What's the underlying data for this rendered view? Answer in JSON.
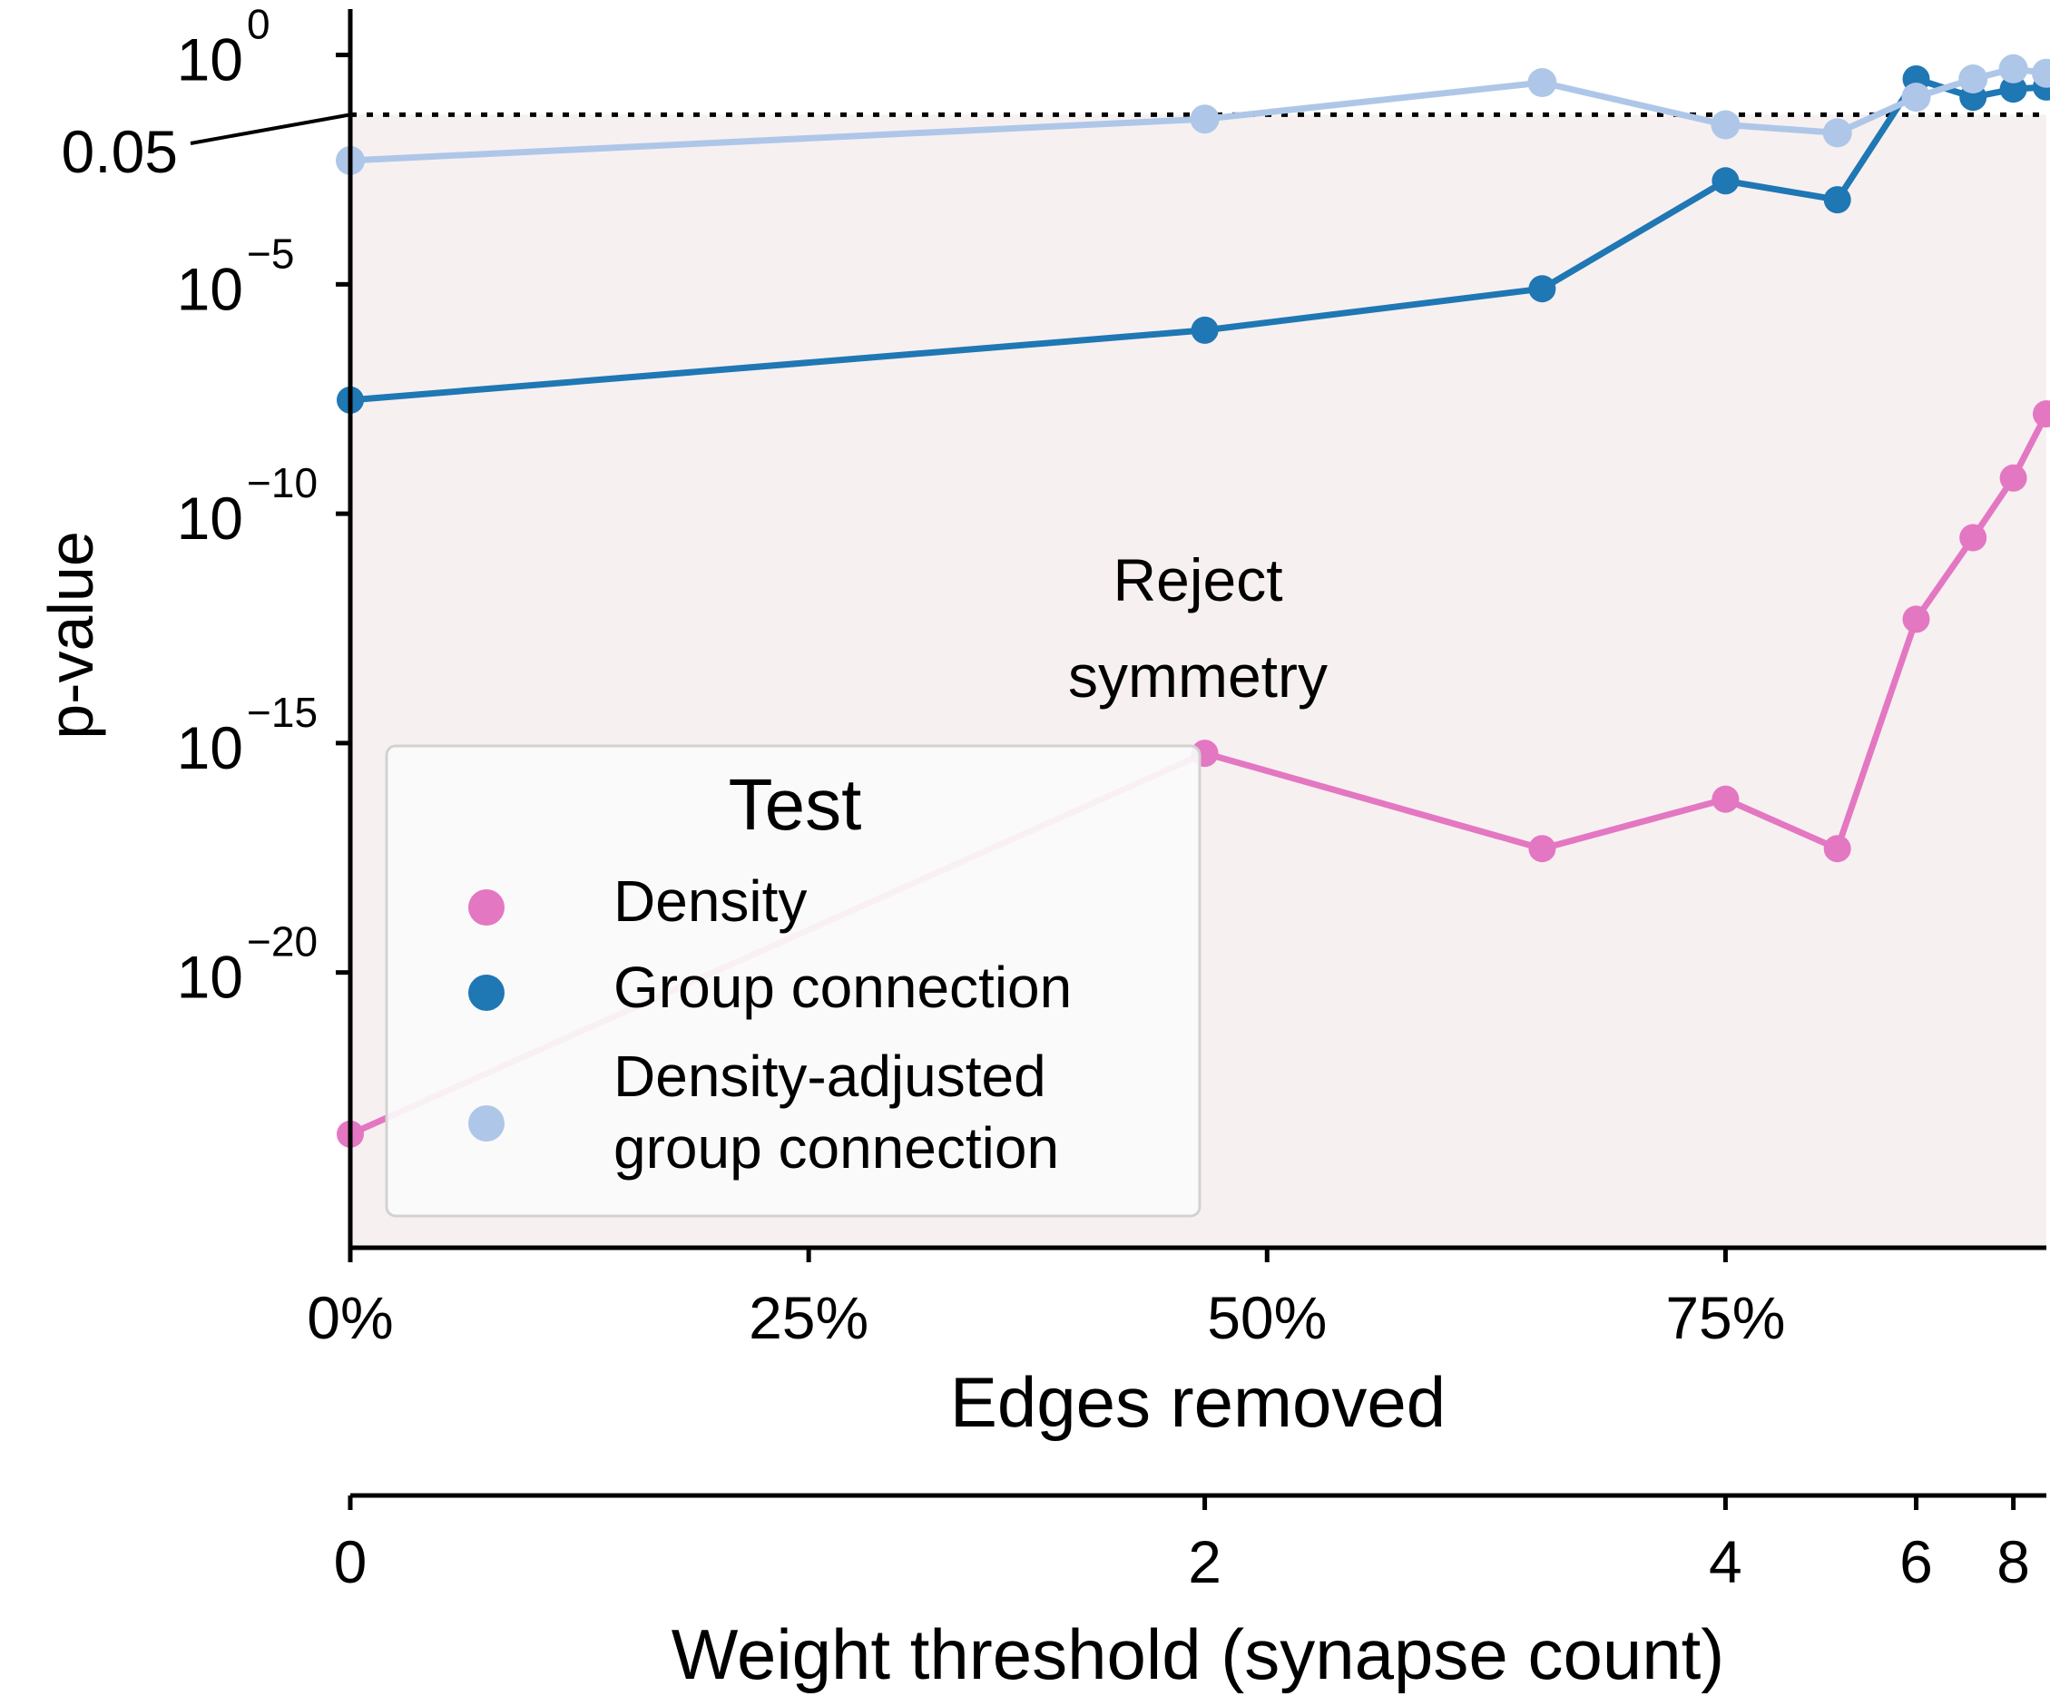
{
  "chart_data": {
    "type": "line",
    "ylabel": "p-value",
    "yscale": "log",
    "ylim": [
      1e-26,
      10
    ],
    "yticks": [
      {
        "value": 1,
        "base": "10",
        "exp": "0"
      },
      {
        "value": 1e-05,
        "base": "10",
        "exp": "−5"
      },
      {
        "value": 1e-10,
        "base": "10",
        "exp": "−10"
      },
      {
        "value": 1e-15,
        "base": "10",
        "exp": "−15"
      },
      {
        "value": 1e-20,
        "base": "10",
        "exp": "−20"
      }
    ],
    "threshold": {
      "value": 0.05,
      "label": "0.05",
      "style": "dotted"
    },
    "region": {
      "label_line1": "Reject",
      "label_line2": "symmetry",
      "color": "#f7f0f1",
      "label_color": "#8b0000"
    },
    "xlabel": "Edges removed",
    "xlim": [
      0,
      0.925
    ],
    "xticks": [
      {
        "value": 0,
        "label": "0%"
      },
      {
        "value": 0.25,
        "label": "25%"
      },
      {
        "value": 0.5,
        "label": "50%"
      },
      {
        "value": 0.75,
        "label": "75%"
      }
    ],
    "x2label": "Weight threshold (synapse count)",
    "x2ticks": [
      {
        "value": 0,
        "label": "0"
      },
      {
        "value": 0.466,
        "label": "2"
      },
      {
        "value": 0.75,
        "label": "4"
      },
      {
        "value": 0.854,
        "label": "6"
      },
      {
        "value": 0.907,
        "label": "8"
      }
    ],
    "series": [
      {
        "name": "Density",
        "color": "#e377c2",
        "x": [
          0,
          0.466,
          0.65,
          0.75,
          0.811,
          0.854,
          0.885,
          0.907,
          0.925
        ],
        "y": [
          3e-24,
          6e-16,
          5e-18,
          6e-17,
          5e-18,
          5e-13,
          3e-11,
          6e-10,
          1.5e-08
        ]
      },
      {
        "name": "Group connection",
        "color": "#1f77b4",
        "x": [
          0,
          0.466,
          0.65,
          0.75,
          0.811,
          0.854,
          0.885,
          0.907,
          0.925
        ],
        "y": [
          3e-08,
          1e-06,
          8e-06,
          0.0018,
          0.0007,
          0.3,
          0.12,
          0.18,
          0.2
        ]
      },
      {
        "name": "Density-adjusted\ngroup connection",
        "color": "#aec7e8",
        "x": [
          0,
          0.466,
          0.65,
          0.75,
          0.811,
          0.854,
          0.885,
          0.907,
          0.925
        ],
        "y": [
          0.005,
          0.04,
          0.25,
          0.03,
          0.02,
          0.12,
          0.3,
          0.5,
          0.4
        ]
      }
    ],
    "legend": {
      "title": "Test",
      "placement": "lower-left",
      "items": [
        "Density",
        "Group connection",
        "Density-adjusted",
        "group connection"
      ]
    },
    "grid": false
  }
}
